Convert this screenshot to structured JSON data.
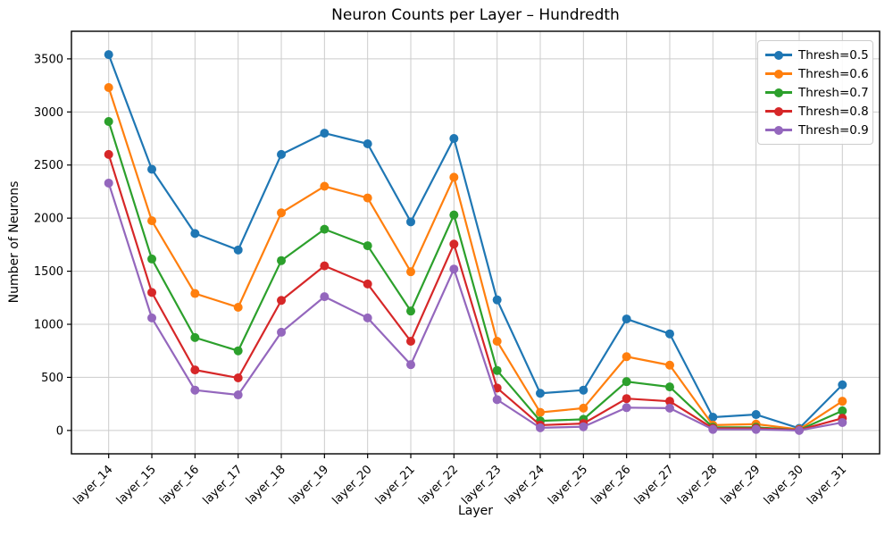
{
  "title": "Neuron Counts per Layer – Hundredth",
  "chart_data": {
    "type": "line",
    "title": "Neuron Counts per Layer – Hundredth",
    "xlabel": "Layer",
    "ylabel": "Number of Neurons",
    "grid": true,
    "legend_position": "upper right",
    "categories": [
      "layer_14",
      "layer_15",
      "layer_16",
      "layer_17",
      "layer_18",
      "layer_19",
      "layer_20",
      "layer_21",
      "layer_22",
      "layer_23",
      "layer_24",
      "layer_25",
      "layer_26",
      "layer_27",
      "layer_28",
      "layer_29",
      "layer_30",
      "layer_31"
    ],
    "yticks": [
      0,
      500,
      1000,
      1500,
      2000,
      2500,
      3000,
      3500
    ],
    "ylim": [
      -220,
      3760
    ],
    "series": [
      {
        "name": "Thresh=0.5",
        "color": "#1f77b4",
        "values": [
          3540,
          2460,
          1855,
          1700,
          2600,
          2800,
          2700,
          1965,
          2750,
          1230,
          350,
          380,
          1050,
          910,
          125,
          150,
          20,
          430
        ]
      },
      {
        "name": "Thresh=0.6",
        "color": "#ff7f0e",
        "values": [
          3230,
          1975,
          1290,
          1160,
          2050,
          2300,
          2190,
          1495,
          2385,
          840,
          170,
          210,
          695,
          615,
          50,
          60,
          10,
          275
        ]
      },
      {
        "name": "Thresh=0.7",
        "color": "#2ca02c",
        "values": [
          2910,
          1615,
          875,
          750,
          1600,
          1895,
          1740,
          1125,
          2030,
          565,
          90,
          105,
          460,
          410,
          30,
          30,
          5,
          185
        ]
      },
      {
        "name": "Thresh=0.8",
        "color": "#d62728",
        "values": [
          2600,
          1300,
          570,
          495,
          1225,
          1550,
          1380,
          840,
          1755,
          400,
          50,
          65,
          300,
          275,
          20,
          20,
          5,
          115
        ]
      },
      {
        "name": "Thresh=0.9",
        "color": "#9467bd",
        "values": [
          2330,
          1060,
          380,
          335,
          925,
          1260,
          1060,
          620,
          1520,
          290,
          25,
          35,
          215,
          210,
          10,
          10,
          0,
          75
        ]
      }
    ]
  }
}
